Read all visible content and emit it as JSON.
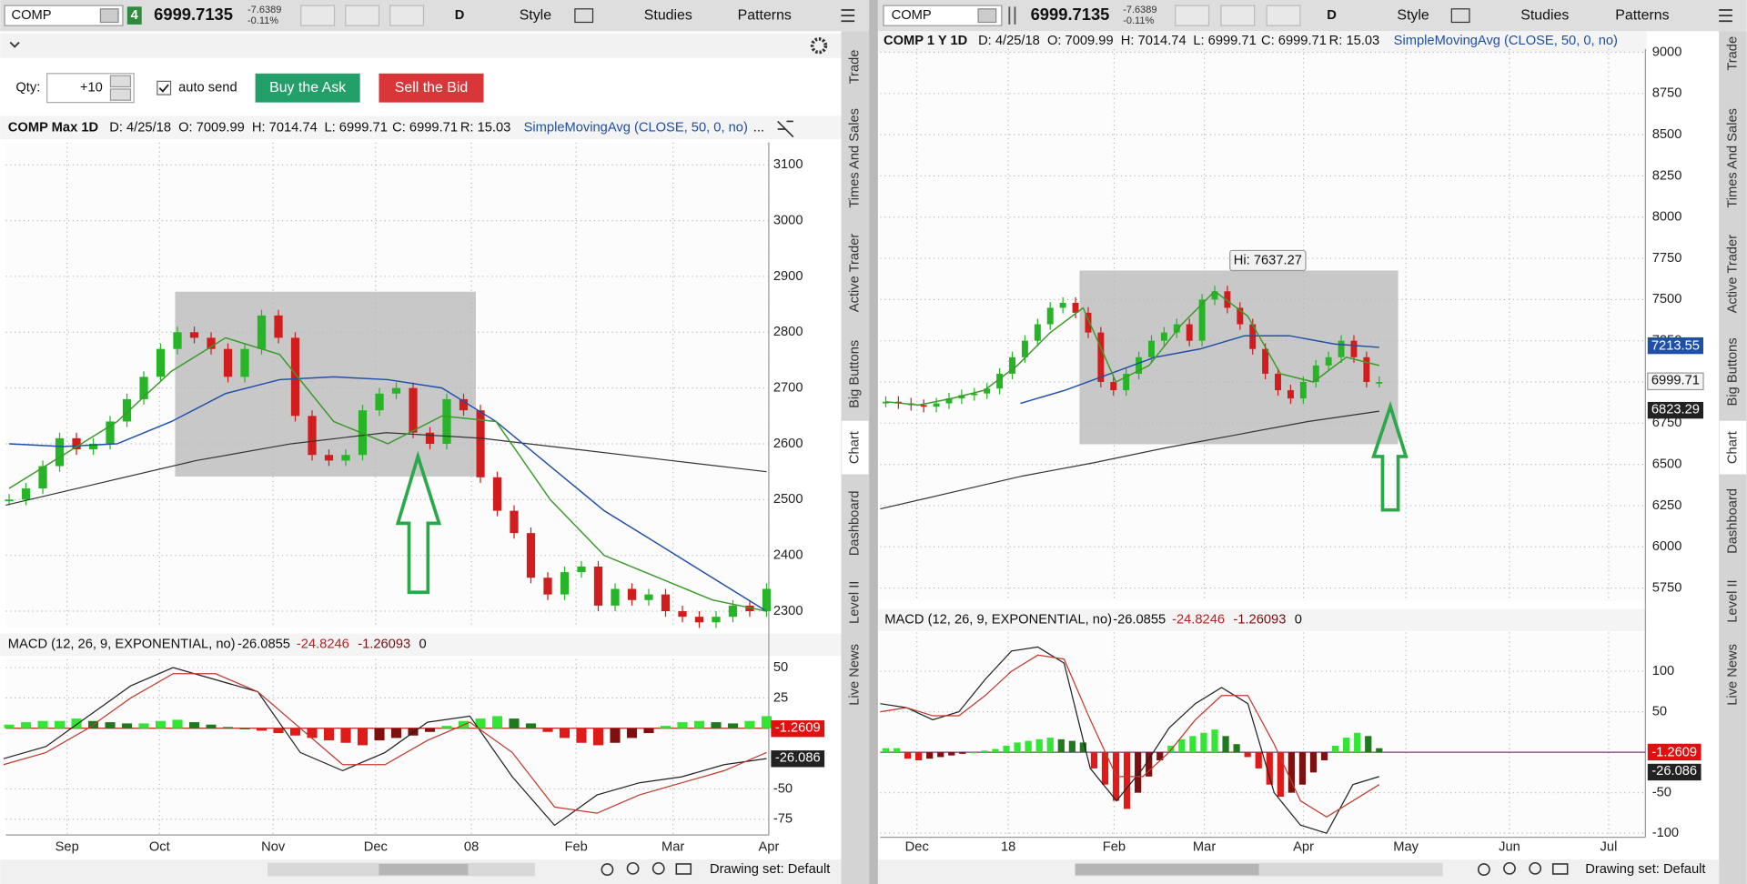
{
  "tabs": [
    "Trade",
    "Times And Sales",
    "Active Trader",
    "Big Buttons",
    "Chart",
    "Dashboard",
    "Level II",
    "Live News"
  ],
  "left": {
    "toolbar": {
      "symbol": "COMP",
      "badge": "4",
      "last": "6999.7135",
      "change": "-7.6389",
      "change_pct": "-0.11%",
      "aggregation": "D",
      "style": "Style",
      "studies": "Studies",
      "patterns": "Patterns"
    },
    "order": {
      "qty_label": "Qty:",
      "qty": "+10",
      "auto_send": "auto send",
      "buy": "Buy the Ask",
      "sell": "Sell the Bid"
    },
    "header": {
      "symbol": "COMP Max 1D",
      "date": "D: 4/25/18",
      "open": "O: 7009.99",
      "high": "H: 7014.74",
      "low": "L: 6999.71",
      "close": "C: 6999.71",
      "range": "R: 15.03",
      "study": "SimpleMovingAvg (CLOSE, 50, 0, no)",
      "more": "..."
    },
    "price": {
      "ylim": [
        2272,
        3140
      ],
      "yticks": [
        2300,
        2400,
        2500,
        2600,
        2700,
        2800,
        2900,
        3000,
        3100
      ],
      "months": [
        "Sep",
        "Oct",
        "Nov",
        "Dec",
        "08",
        "Feb",
        "Mar",
        "Apr"
      ],
      "closes": [
        2500,
        2520,
        2560,
        2610,
        2590,
        2600,
        2640,
        2680,
        2720,
        2770,
        2800,
        2790,
        2770,
        2720,
        2770,
        2830,
        2790,
        2650,
        2580,
        2570,
        2580,
        2660,
        2690,
        2700,
        2620,
        2600,
        2680,
        2660,
        2540,
        2480,
        2440,
        2360,
        2330,
        2370,
        2380,
        2310,
        2340,
        2320,
        2330,
        2300,
        2290,
        2280,
        2290,
        2310,
        2300,
        2340
      ],
      "sma_fast": [
        2520,
        2580,
        2640,
        2730,
        2790,
        2760,
        2640,
        2600,
        2650,
        2640,
        2500,
        2400,
        2360,
        2320,
        2300
      ],
      "sma50": [
        2600,
        2595,
        2600,
        2640,
        2690,
        2715,
        2720,
        2715,
        2700,
        2640,
        2560,
        2480,
        2420,
        2360,
        2300
      ],
      "sma200": [
        2490,
        2530,
        2570,
        2600,
        2620,
        2610,
        2590,
        2570,
        2550
      ]
    },
    "macd": {
      "label": "MACD (12, 26, 9, EXPONENTIAL, no)",
      "values": [
        "-26.0855",
        "-24.8246",
        "-1.26093",
        "0"
      ],
      "ylim": [
        -88,
        57
      ],
      "yticks": [
        50,
        25,
        -50,
        -75
      ],
      "hist": [
        3,
        5,
        6,
        6,
        8,
        6,
        5,
        4,
        4,
        6,
        7,
        5,
        3,
        1,
        0,
        -2,
        -4,
        -6,
        -8,
        -10,
        -12,
        -14,
        -10,
        -8,
        -6,
        -3,
        2,
        6,
        8,
        10,
        8,
        4,
        -3,
        -8,
        -12,
        -14,
        -12,
        -8,
        -4,
        2,
        5,
        6,
        5,
        4,
        6,
        10
      ],
      "value_line": [
        -25,
        -15,
        10,
        35,
        50,
        40,
        30,
        -20,
        -35,
        -20,
        5,
        10,
        -40,
        -80,
        -55,
        -45,
        -40,
        -30,
        -25
      ],
      "signal": [
        -30,
        -20,
        0,
        25,
        45,
        45,
        30,
        0,
        -30,
        -30,
        -10,
        5,
        -20,
        -65,
        -70,
        -55,
        -45,
        -35,
        -20
      ],
      "badges": [
        "-1.2609",
        "-26.086"
      ]
    },
    "footer": {
      "drawing_set": "Drawing set: Default"
    }
  },
  "right": {
    "toolbar": {
      "symbol": "COMP",
      "last": "6999.7135",
      "change": "-7.6389",
      "change_pct": "-0.11%",
      "aggregation": "D",
      "style": "Style",
      "studies": "Studies",
      "patterns": "Patterns"
    },
    "header": {
      "symbol": "COMP 1 Y 1D",
      "date": "D: 4/25/18",
      "open": "O: 7009.99",
      "high": "H: 7014.74",
      "low": "L: 6999.71",
      "close": "C: 6999.71",
      "range": "R: 15.03",
      "study": "SimpleMovingAvg (CLOSE, 50, 0, no)"
    },
    "price": {
      "ylim": [
        5670,
        9020
      ],
      "yticks": [
        5750,
        6000,
        6250,
        6500,
        6750,
        7000,
        7250,
        7500,
        7750,
        8000,
        8250,
        8500,
        8750,
        9000
      ],
      "months": [
        "Dec",
        "18",
        "Feb",
        "Mar",
        "Apr",
        "May",
        "Jun",
        "Jul"
      ],
      "closes": [
        6880,
        6870,
        6860,
        6850,
        6870,
        6900,
        6920,
        6930,
        6960,
        7050,
        7150,
        7250,
        7350,
        7450,
        7480,
        7420,
        7300,
        7000,
        6950,
        7050,
        7150,
        7250,
        7300,
        7350,
        7250,
        7500,
        7550,
        7450,
        7350,
        7200,
        7050,
        6950,
        6900,
        7000,
        7100,
        7150,
        7250,
        7150,
        7000,
        7000
      ],
      "sma_fast": [
        6880,
        6860,
        6900,
        6950,
        7100,
        7300,
        7450,
        7000,
        7100,
        7350,
        7550,
        7400,
        7050,
        7000,
        7150,
        7100
      ],
      "sma50": [
        null,
        null,
        null,
        6870,
        6950,
        7050,
        7150,
        7200,
        7280,
        7280,
        7230,
        7210
      ],
      "sma200": [
        6230,
        6330,
        6430,
        6510,
        6600,
        6680,
        6760,
        6823
      ],
      "hi_label": "Hi: 7637.27",
      "badges": [
        "7213.55",
        "6999.71",
        "6823.29"
      ]
    },
    "macd": {
      "label": "MACD (12, 26, 9, EXPONENTIAL, no)",
      "values": [
        "-26.0855",
        "-24.8246",
        "-1.26093",
        "0"
      ],
      "ylim": [
        -105,
        148
      ],
      "yticks": [
        100,
        50,
        -50,
        -100
      ],
      "hist": [
        5,
        5,
        -8,
        -10,
        -8,
        -6,
        -4,
        -2,
        0,
        2,
        4,
        8,
        12,
        14,
        16,
        18,
        16,
        14,
        12,
        -20,
        -40,
        -60,
        -70,
        -50,
        -30,
        -10,
        8,
        16,
        20,
        24,
        28,
        20,
        10,
        -6,
        -20,
        -40,
        -55,
        -50,
        -40,
        -25,
        -10,
        8,
        18,
        24,
        20,
        5
      ],
      "value_line": [
        60,
        55,
        40,
        50,
        90,
        125,
        130,
        110,
        -20,
        -60,
        -20,
        30,
        60,
        80,
        60,
        -50,
        -90,
        -100,
        -40,
        -30
      ],
      "signal": [
        50,
        55,
        45,
        45,
        70,
        100,
        120,
        115,
        40,
        -30,
        -30,
        0,
        40,
        70,
        70,
        10,
        -60,
        -80,
        -60,
        -40
      ],
      "badges": [
        "-1.2609",
        "-26.086"
      ]
    },
    "footer": {
      "drawing_set": "Drawing set: Default"
    }
  }
}
